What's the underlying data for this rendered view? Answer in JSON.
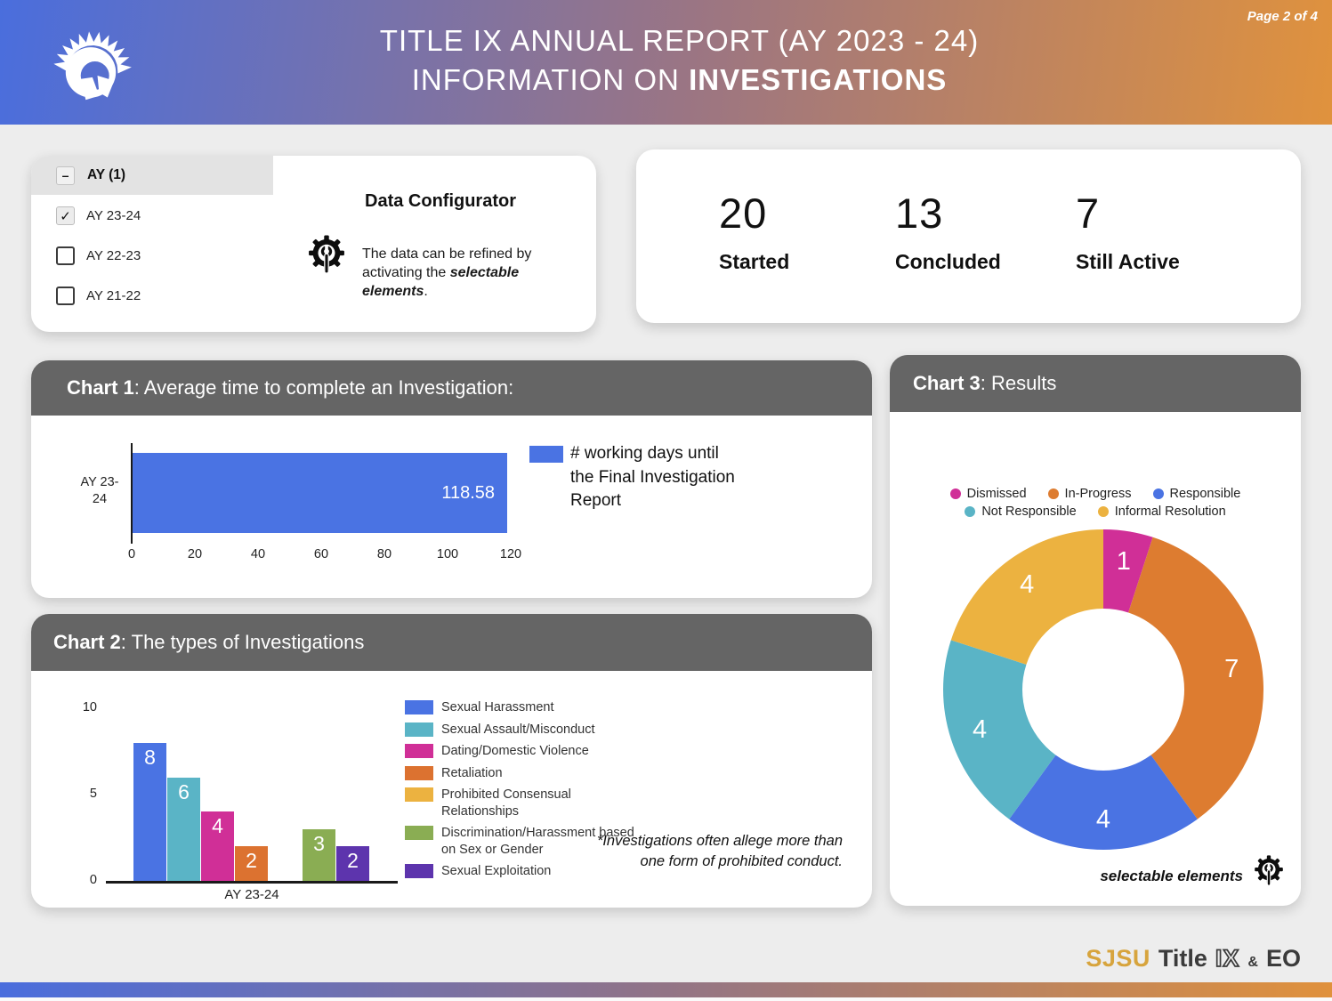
{
  "header": {
    "page_indicator": "Page 2 of 4",
    "title_line1": "TITLE IX ANNUAL REPORT (AY 2023 - 24)",
    "title_line2_prefix": "INFORMATION ON ",
    "title_line2_bold": "INVESTIGATIONS",
    "gradient_left": "#4a6edd",
    "gradient_right": "#e0923d"
  },
  "filter_panel": {
    "group_label": "AY (1)",
    "options": [
      {
        "label": "AY 23-24",
        "checked": true
      },
      {
        "label": "AY 22-23",
        "checked": false
      },
      {
        "label": "AY 21-22",
        "checked": false
      }
    ]
  },
  "data_configurator": {
    "title": "Data Configurator",
    "description_prefix": "The data can be refined by activating the ",
    "description_bold": "selectable elements",
    "description_suffix": "."
  },
  "stats": [
    {
      "value": "20",
      "label": "Started"
    },
    {
      "value": "13",
      "label": "Concluded"
    },
    {
      "value": "7",
      "label": "Still Active"
    }
  ],
  "charts": {
    "chart1": {
      "title_bold": "Chart 1",
      "title_rest": ": Average time to complete an Investigation:"
    },
    "chart2": {
      "title_bold": "Chart 2",
      "title_rest": ": The types of Investigations"
    },
    "chart3": {
      "title_bold": "Chart 3",
      "title_rest": ": Results"
    }
  },
  "chart_data": [
    {
      "id": "chart1",
      "type": "bar",
      "orientation": "horizontal",
      "title": "Average time to complete an Investigation",
      "categories": [
        "AY 23-24"
      ],
      "series": [
        {
          "name": "# working days until the Final Investigation Report",
          "values": [
            118.58
          ],
          "color": "#4a73e3"
        }
      ],
      "value_labels": [
        "118.58"
      ],
      "xlim": [
        0,
        120
      ],
      "x_ticks": [
        0,
        20,
        40,
        60,
        80,
        100,
        120
      ],
      "legend_position": "right",
      "grid": false
    },
    {
      "id": "chart2",
      "type": "bar",
      "title": "The types of Investigations",
      "categories": [
        "AY 23-24"
      ],
      "series": [
        {
          "name": "Sexual Harassment",
          "values": [
            8
          ],
          "color": "#4a73e3"
        },
        {
          "name": "Sexual Assault/Misconduct",
          "values": [
            6
          ],
          "color": "#5ab4c6"
        },
        {
          "name": "Dating/Domestic Violence",
          "values": [
            4
          ],
          "color": "#d02f97"
        },
        {
          "name": "Retaliation",
          "values": [
            2
          ],
          "color": "#dc7230"
        },
        {
          "name": "Prohibited Consensual Relationships",
          "values": [
            0
          ],
          "color": "#ecb240"
        },
        {
          "name": "Discrimination/Harassment based on Sex or Gender",
          "values": [
            3
          ],
          "color": "#8aad53"
        },
        {
          "name": "Sexual Exploitation",
          "values": [
            2
          ],
          "color": "#5d34ad"
        }
      ],
      "ylim": [
        0,
        10
      ],
      "y_ticks": [
        0,
        5,
        10
      ],
      "legend_position": "right",
      "footnote": "*Investigations often allege more than one form of prohibited conduct."
    },
    {
      "id": "chart3",
      "type": "pie",
      "subtype": "donut",
      "title": "Results",
      "slices": [
        {
          "label": "Dismissed",
          "value": 1,
          "color": "#d02f97"
        },
        {
          "label": "In-Progress",
          "value": 7,
          "color": "#dd7c30"
        },
        {
          "label": "Responsible",
          "value": 4,
          "color": "#4a73e3"
        },
        {
          "label": "Not Responsible",
          "value": 4,
          "color": "#5ab4c6"
        },
        {
          "label": "Informal Resolution",
          "value": 4,
          "color": "#ecb240"
        }
      ],
      "total": 20,
      "start_angle": "top",
      "direction": "clockwise",
      "legend_position": "top",
      "note": "selectable elements"
    }
  ],
  "footer": {
    "sjsu": "SJSU",
    "title": "Title",
    "ix": "IX",
    "amp": "&",
    "eo": "EO",
    "gold": "#d7a43d"
  }
}
